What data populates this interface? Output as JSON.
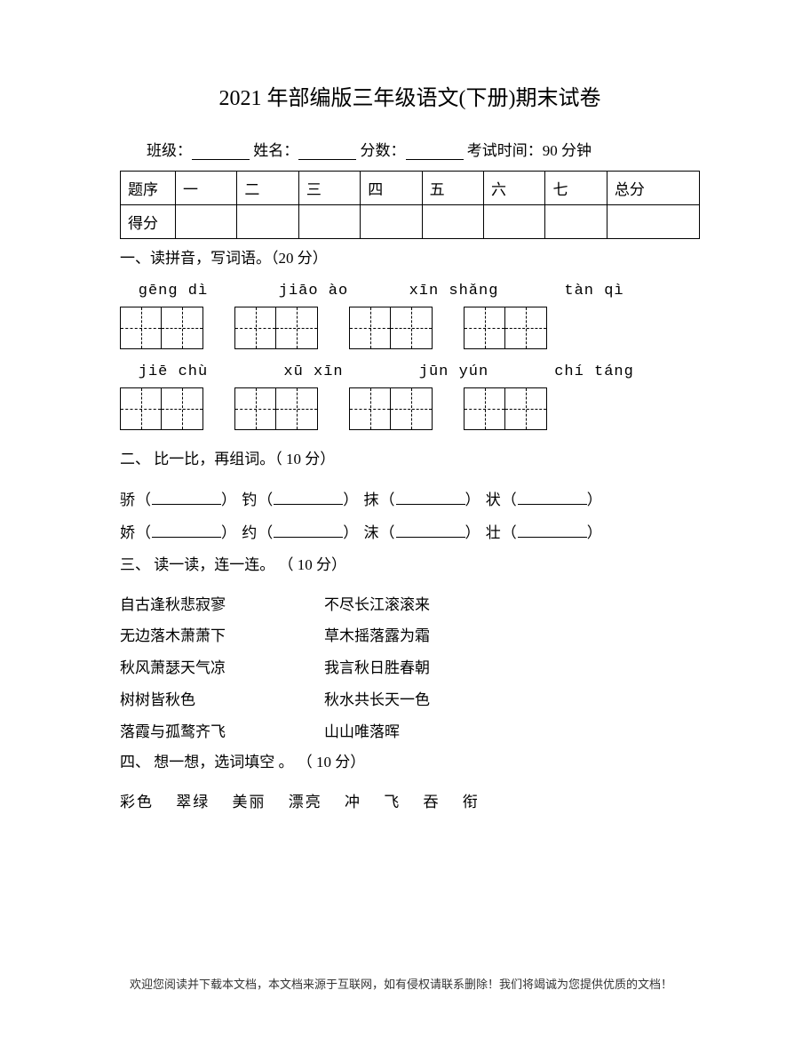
{
  "title": "2021 年部编版三年级语文(下册)期末试卷",
  "info": {
    "class_label": "班级：",
    "name_label": "姓名：",
    "score_label": "分数：",
    "time_label": "考试时间：90 分钟"
  },
  "scoreTable": {
    "row1": [
      "题序",
      "一",
      "二",
      "三",
      "四",
      "五",
      "六",
      "七",
      "总分"
    ],
    "row2_label": "得分"
  },
  "section1": {
    "heading": "一、读拼音，写词语。（20 分）",
    "pinyin_row1": [
      "gēng dì",
      "jiāo ào",
      "xīn shǎng",
      "tàn qì"
    ],
    "pinyin_row2": [
      "jiē chù",
      "xū xīn",
      "jūn yún",
      "chí táng"
    ]
  },
  "section2": {
    "heading": "二、 比一比，再组词。（ 10 分）",
    "line1": {
      "c1": "骄",
      "c2": "钓",
      "c3": "抹",
      "c4": "状"
    },
    "line2": {
      "c1": "娇",
      "c2": "约",
      "c3": "沫",
      "c4": "壮"
    }
  },
  "section3": {
    "heading": "三、 读一读，连一连。 （ 10 分）",
    "pairs": [
      {
        "left": "自古逢秋悲寂寥",
        "right": "不尽长江滚滚来"
      },
      {
        "left": "无边落木萧萧下",
        "right": "草木摇落露为霜"
      },
      {
        "left": "秋风萧瑟天气凉",
        "right": "我言秋日胜春朝"
      },
      {
        "left": "树树皆秋色",
        "right": "秋水共长天一色"
      },
      {
        "left": "落霞与孤鹜齐飞",
        "right": "山山唯落晖"
      }
    ]
  },
  "section4": {
    "heading": "四、 想一想，选词填空 。 （ 10 分）",
    "words": "彩色　 翠绿　 美丽　 漂亮　 冲　 飞　 吞　 衔"
  },
  "footer": "欢迎您阅读并下载本文档，本文档来源于互联网，如有侵权请联系删除！我们将竭诚为您提供优质的文档！"
}
